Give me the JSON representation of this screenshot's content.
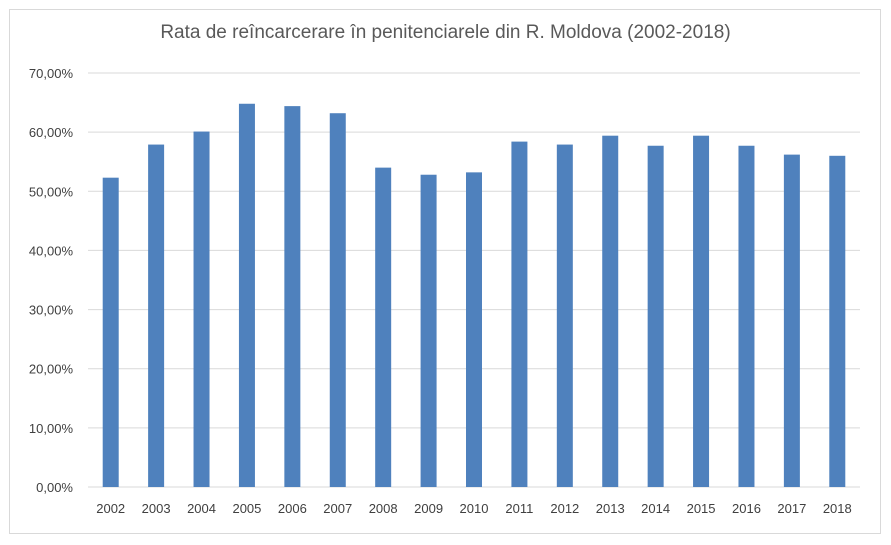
{
  "chart_data": {
    "type": "bar",
    "title": "Rata de reîncarcerare în penitenciarele din R. Moldova (2002-2018)",
    "categories": [
      "2002",
      "2003",
      "2004",
      "2005",
      "2006",
      "2007",
      "2008",
      "2009",
      "2010",
      "2011",
      "2012",
      "2013",
      "2014",
      "2015",
      "2016",
      "2017",
      "2018"
    ],
    "values": [
      52.3,
      57.9,
      60.1,
      64.8,
      64.4,
      63.2,
      54.0,
      52.8,
      53.2,
      58.4,
      57.9,
      59.4,
      57.7,
      59.4,
      57.7,
      56.2,
      56.0
    ],
    "y_ticks": [
      "0,00%",
      "10,00%",
      "20,00%",
      "30,00%",
      "40,00%",
      "50,00%",
      "60,00%",
      "70,00%"
    ],
    "ylim": [
      0,
      70
    ],
    "y_unit": "percent",
    "grid": true,
    "legend": "none",
    "colors": {
      "bar": "#4f81bd",
      "grid": "#d9d9d9",
      "text": "#595959"
    }
  }
}
